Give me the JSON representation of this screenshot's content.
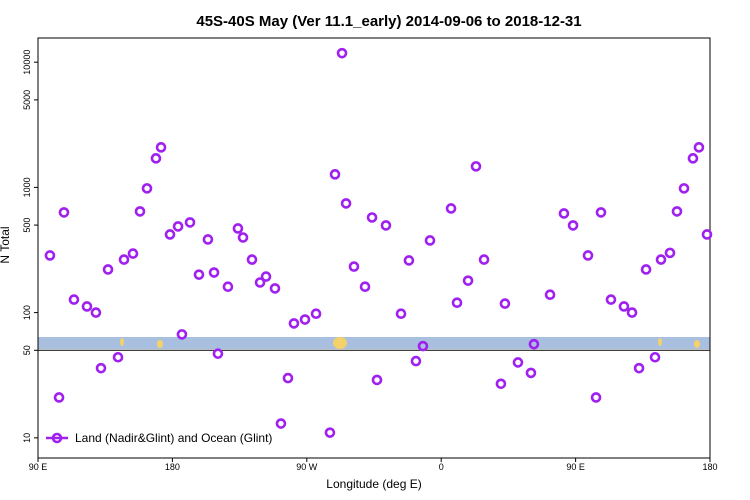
{
  "chart_data": {
    "type": "scatter",
    "title": "45S-40S May (Ver 11.1_early)   2014-09-06 to 2018-12-31",
    "x_label": "Longitude (deg E)",
    "y_label": "N Total",
    "log_y": true,
    "xlim": [
      90,
      540
    ],
    "ylim": [
      6.9,
      15600
    ],
    "xticks": [
      {
        "value": 90,
        "label": "90 E"
      },
      180,
      {
        "value": 270,
        "label": "90 W"
      },
      {
        "value": 360,
        "label": "0"
      },
      {
        "value": 450,
        "label": "90 E"
      },
      {
        "value": 540,
        "label": "180"
      }
    ],
    "yticks": [
      10,
      50,
      100,
      500,
      1000,
      5000,
      10000
    ],
    "reference_line": 50,
    "legend_position": "bottom-left",
    "series": [
      {
        "name": "Land (Nadir&Glint) and Ocean (Glint)",
        "color": "#a020f0",
        "x": [
          98.0,
          104.1,
          107.4,
          114.1,
          122.8,
          128.8,
          132.2,
          136.9,
          143.6,
          147.6,
          153.6,
          158.3,
          163.0,
          169.0,
          172.4,
          178.4,
          183.8,
          186.4,
          191.8,
          197.8,
          203.8,
          207.9,
          210.5,
          217.2,
          223.9,
          227.3,
          233.3,
          238.7,
          242.7,
          248.7,
          252.7,
          257.4,
          261.4,
          268.8,
          276.2,
          285.5,
          288.9,
          293.6,
          296.3,
          301.6,
          309.0,
          313.7,
          317.0,
          323.0,
          333.1,
          338.4,
          343.1,
          347.8,
          352.5,
          366.6,
          370.6,
          378.0,
          383.3,
          388.7,
          400.0,
          402.7,
          411.4,
          420.1,
          422.1,
          432.9,
          442.2,
          448.3,
          458.3,
          463.7,
          467.0,
          473.7,
          482.4,
          487.8,
          492.5,
          497.2,
          503.2,
          507.2,
          513.2,
          517.9,
          522.6,
          528.6,
          532.6,
          538.0
        ],
        "values": [
          286,
          21,
          631,
          127,
          112,
          100,
          36,
          221,
          44,
          265,
          296,
          643,
          982,
          1706,
          2089,
          421,
          488,
          67,
          525,
          201,
          384,
          209,
          47,
          161,
          470,
          398,
          265,
          174,
          194,
          156,
          13,
          30,
          82,
          88,
          98,
          11,
          1271,
          11800,
          745,
          233,
          161,
          575,
          29,
          497,
          98,
          261,
          41,
          54,
          377,
          679,
          120,
          180,
          1472,
          265,
          27,
          118,
          40,
          33,
          56,
          139,
          619,
          497,
          286,
          21,
          631,
          127,
          112,
          100,
          36,
          221,
          44,
          265,
          300,
          643,
          982,
          1706,
          2089,
          421
        ]
      }
    ]
  }
}
